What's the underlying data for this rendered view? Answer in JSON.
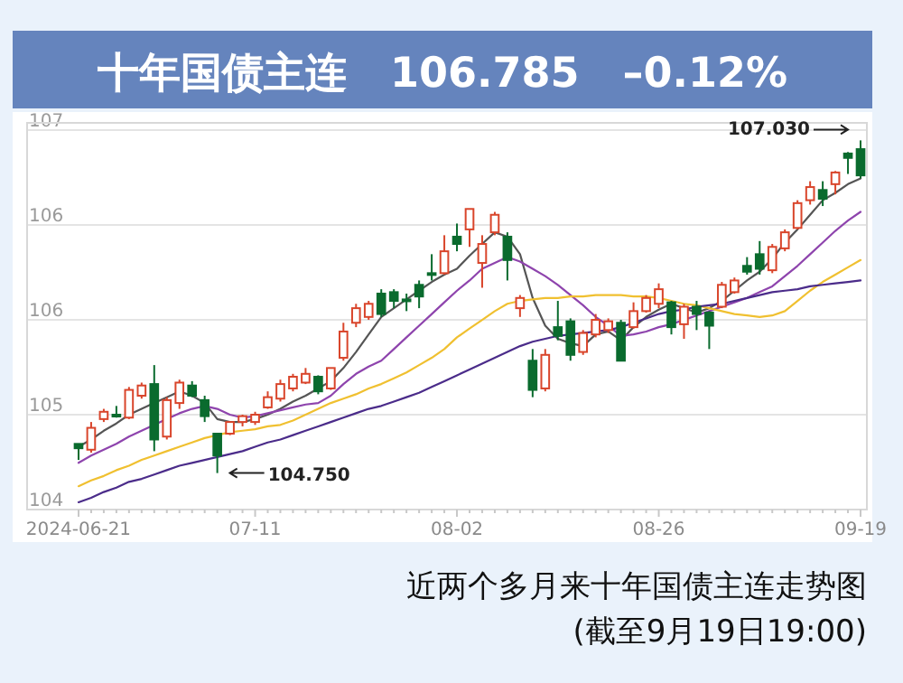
{
  "chart_data": {
    "type": "candlestick",
    "title": "十年国债主连   106.785   –0.12%",
    "categories": [
      "2024-06-21",
      null,
      null,
      null,
      null,
      null,
      null,
      null,
      null,
      null,
      null,
      null,
      null,
      null,
      "07-11",
      null,
      null,
      null,
      null,
      null,
      null,
      null,
      null,
      null,
      null,
      null,
      null,
      null,
      null,
      null,
      "08-02",
      null,
      null,
      null,
      null,
      null,
      null,
      null,
      null,
      null,
      null,
      null,
      null,
      null,
      null,
      null,
      "08-26",
      null,
      null,
      null,
      null,
      null,
      null,
      null,
      null,
      null,
      null,
      null,
      null,
      null,
      null,
      null,
      "09-19"
    ],
    "ohlc": [
      [
        104.95,
        104.95,
        104.84,
        104.92
      ],
      [
        104.91,
        105.1,
        104.89,
        105.06
      ],
      [
        105.12,
        105.19,
        105.1,
        105.17
      ],
      [
        105.15,
        105.21,
        105.13,
        105.14
      ],
      [
        105.13,
        105.34,
        105.12,
        105.32
      ],
      [
        105.28,
        105.37,
        105.26,
        105.35
      ],
      [
        105.36,
        105.49,
        104.9,
        104.98
      ],
      [
        105.0,
        105.27,
        104.98,
        105.25
      ],
      [
        105.23,
        105.39,
        105.19,
        105.37
      ],
      [
        105.35,
        105.38,
        105.27,
        105.28
      ],
      [
        105.25,
        105.28,
        105.1,
        105.14
      ],
      [
        105.02,
        105.02,
        104.75,
        104.87
      ],
      [
        105.02,
        105.1,
        105.01,
        105.1
      ],
      [
        105.1,
        105.15,
        105.07,
        105.14
      ],
      [
        105.1,
        105.17,
        105.08,
        105.15
      ],
      [
        105.2,
        105.31,
        105.19,
        105.27
      ],
      [
        105.26,
        105.39,
        105.24,
        105.36
      ],
      [
        105.33,
        105.43,
        105.31,
        105.41
      ],
      [
        105.37,
        105.47,
        105.36,
        105.43
      ],
      [
        105.41,
        105.42,
        105.29,
        105.31
      ],
      [
        105.33,
        105.47,
        105.32,
        105.47
      ],
      [
        105.54,
        105.78,
        105.52,
        105.72
      ],
      [
        105.78,
        105.91,
        105.75,
        105.88
      ],
      [
        105.82,
        105.93,
        105.8,
        105.91
      ],
      [
        105.98,
        106.01,
        105.82,
        105.84
      ],
      [
        105.99,
        106.01,
        105.88,
        105.93
      ],
      [
        105.94,
        105.98,
        105.86,
        105.93
      ],
      [
        106.04,
        106.07,
        105.88,
        105.96
      ],
      [
        106.12,
        106.25,
        106.07,
        106.11
      ],
      [
        106.12,
        106.38,
        106.11,
        106.27
      ],
      [
        106.37,
        106.46,
        106.27,
        106.32
      ],
      [
        106.42,
        106.56,
        106.3,
        106.56
      ],
      [
        106.19,
        106.38,
        106.02,
        106.32
      ],
      [
        106.4,
        106.54,
        106.38,
        106.52
      ],
      [
        106.37,
        106.4,
        106.07,
        106.21
      ],
      [
        105.88,
        105.97,
        105.82,
        105.95
      ],
      [
        105.52,
        105.6,
        105.27,
        105.32
      ],
      [
        105.33,
        105.6,
        105.31,
        105.56
      ],
      [
        105.75,
        105.93,
        105.66,
        105.69
      ],
      [
        105.79,
        105.81,
        105.52,
        105.56
      ],
      [
        105.58,
        105.73,
        105.56,
        105.71
      ],
      [
        105.7,
        105.84,
        105.68,
        105.8
      ],
      [
        105.73,
        105.81,
        105.71,
        105.79
      ],
      [
        105.78,
        105.8,
        105.52,
        105.52
      ],
      [
        105.75,
        105.92,
        105.74,
        105.86
      ],
      [
        105.86,
        105.97,
        105.85,
        105.95
      ],
      [
        105.91,
        106.05,
        105.88,
        106.01
      ],
      [
        105.92,
        105.93,
        105.7,
        105.75
      ],
      [
        105.77,
        105.91,
        105.67,
        105.89
      ],
      [
        105.89,
        105.93,
        105.73,
        105.84
      ],
      [
        105.85,
        105.86,
        105.6,
        105.76
      ],
      [
        105.89,
        106.06,
        105.88,
        106.04
      ],
      [
        105.99,
        106.09,
        105.98,
        106.07
      ],
      [
        106.17,
        106.23,
        106.11,
        106.13
      ],
      [
        106.25,
        106.34,
        106.11,
        106.15
      ],
      [
        106.14,
        106.32,
        106.12,
        106.3
      ],
      [
        106.29,
        106.42,
        106.27,
        106.4
      ],
      [
        106.43,
        106.62,
        106.42,
        106.6
      ],
      [
        106.62,
        106.75,
        106.59,
        106.71
      ],
      [
        106.69,
        106.75,
        106.58,
        106.63
      ],
      [
        106.73,
        106.82,
        106.66,
        106.81
      ],
      [
        106.94,
        106.95,
        106.8,
        106.91
      ],
      [
        106.97,
        107.03,
        106.77,
        106.79
      ]
    ],
    "series": [
      {
        "type": "line",
        "color": "#555555",
        "values": [
          104.93,
          104.98,
          105.04,
          105.09,
          105.15,
          105.19,
          105.23,
          105.27,
          105.31,
          105.28,
          105.23,
          105.12,
          105.1,
          105.1,
          105.12,
          105.15,
          105.19,
          105.24,
          105.28,
          105.33,
          105.38,
          105.47,
          105.58,
          105.7,
          105.82,
          105.88,
          105.94,
          106.0,
          106.06,
          106.11,
          106.15,
          106.24,
          106.32,
          106.4,
          106.37,
          106.25,
          105.95,
          105.76,
          105.67,
          105.64,
          105.62,
          105.7,
          105.72,
          105.66,
          105.75,
          105.82,
          105.87,
          105.91,
          105.88,
          105.85,
          105.88,
          105.93,
          106.0,
          106.07,
          106.13,
          106.22,
          106.33,
          106.42,
          106.52,
          106.62,
          106.67,
          106.73,
          106.77
        ]
      },
      {
        "type": "line",
        "color": "#8e44ad",
        "values": [
          104.82,
          104.87,
          104.91,
          104.95,
          105.0,
          105.04,
          105.08,
          105.12,
          105.16,
          105.19,
          105.21,
          105.19,
          105.15,
          105.13,
          105.14,
          105.16,
          105.18,
          105.2,
          105.22,
          105.23,
          105.28,
          105.36,
          105.43,
          105.48,
          105.52,
          105.6,
          105.68,
          105.76,
          105.84,
          105.92,
          106.0,
          106.07,
          106.15,
          106.19,
          106.23,
          106.2,
          106.15,
          106.1,
          106.04,
          105.97,
          105.9,
          105.82,
          105.76,
          105.69,
          105.7,
          105.72,
          105.75,
          105.77,
          105.8,
          105.83,
          105.86,
          105.89,
          105.92,
          105.95,
          105.99,
          106.03,
          106.1,
          106.17,
          106.25,
          106.33,
          106.41,
          106.48,
          106.54
        ]
      },
      {
        "type": "line",
        "color": "#f0c030",
        "values": [
          104.66,
          104.7,
          104.73,
          104.77,
          104.8,
          104.84,
          104.87,
          104.9,
          104.93,
          104.96,
          104.99,
          105.01,
          105.03,
          105.04,
          105.05,
          105.07,
          105.08,
          105.11,
          105.15,
          105.19,
          105.23,
          105.26,
          105.29,
          105.33,
          105.36,
          105.4,
          105.44,
          105.49,
          105.54,
          105.6,
          105.68,
          105.74,
          105.8,
          105.86,
          105.91,
          105.93,
          105.94,
          105.95,
          105.95,
          105.96,
          105.96,
          105.97,
          105.97,
          105.97,
          105.96,
          105.96,
          105.95,
          105.93,
          105.91,
          105.9,
          105.88,
          105.86,
          105.84,
          105.83,
          105.82,
          105.83,
          105.86,
          105.93,
          106.0,
          106.06,
          106.11,
          106.16,
          106.21
        ]
      },
      {
        "type": "line",
        "color": "#4b2c8a",
        "values": [
          104.55,
          104.58,
          104.62,
          104.65,
          104.69,
          104.71,
          104.74,
          104.77,
          104.8,
          104.82,
          104.84,
          104.86,
          104.88,
          104.9,
          104.93,
          104.96,
          104.98,
          105.01,
          105.04,
          105.07,
          105.1,
          105.13,
          105.16,
          105.19,
          105.21,
          105.24,
          105.27,
          105.3,
          105.34,
          105.38,
          105.42,
          105.46,
          105.5,
          105.54,
          105.58,
          105.62,
          105.65,
          105.67,
          105.69,
          105.7,
          105.71,
          105.72,
          105.73,
          105.75,
          105.78,
          105.81,
          105.84,
          105.86,
          105.87,
          105.89,
          105.9,
          105.91,
          105.93,
          105.95,
          105.97,
          105.99,
          106.0,
          106.01,
          106.03,
          106.04,
          106.05,
          106.06,
          106.07
        ]
      }
    ],
    "ylim": [
      104.5,
      107.15
    ],
    "yticks": [
      {
        "value": 104.5,
        "label": "104"
      },
      {
        "value": 105.15,
        "label": "105"
      },
      {
        "value": 105.8,
        "label": "106"
      },
      {
        "value": 106.45,
        "label": "106"
      },
      {
        "value": 107.1,
        "label": "107"
      }
    ],
    "grid": "y",
    "marker": "none",
    "annotations": [
      "近两个多月来十年国债主连走势图",
      "(截至9月19日19:00)",
      "107.030",
      "104.750"
    ]
  }
}
